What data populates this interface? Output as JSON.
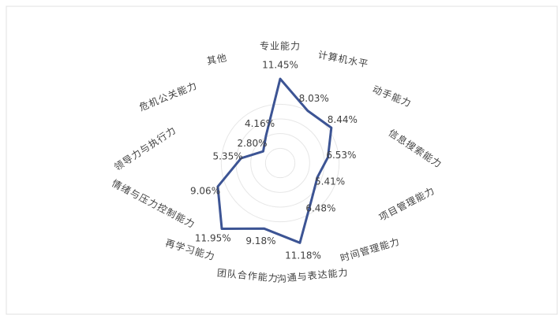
{
  "chart_data": {
    "type": "radar",
    "categories": [
      "专业能力",
      "计算机水平",
      "动手能力",
      "信息搜索能力",
      "项目管理能力",
      "时间管理能力",
      "沟通与表达能力",
      "团队合作能力",
      "再学习能力",
      "情绪与压力控制能力",
      "领导力与执行力",
      "危机公关能力",
      "其他"
    ],
    "values": [
      11.45,
      8.03,
      8.44,
      6.53,
      5.41,
      6.48,
      11.18,
      9.18,
      11.95,
      9.06,
      5.35,
      2.8,
      4.16
    ],
    "value_labels": [
      "11.45%",
      "8.03%",
      "8.44%",
      "6.53%",
      "5.41%",
      "6.48%",
      "11.18%",
      "9.18%",
      "11.95%",
      "9.06%",
      "5.35%",
      "2.80%",
      "4.16%"
    ],
    "color": "#3c5494",
    "ylim": [
      0,
      12
    ],
    "yticks": [
      2,
      4,
      6,
      8
    ],
    "grid": true
  }
}
